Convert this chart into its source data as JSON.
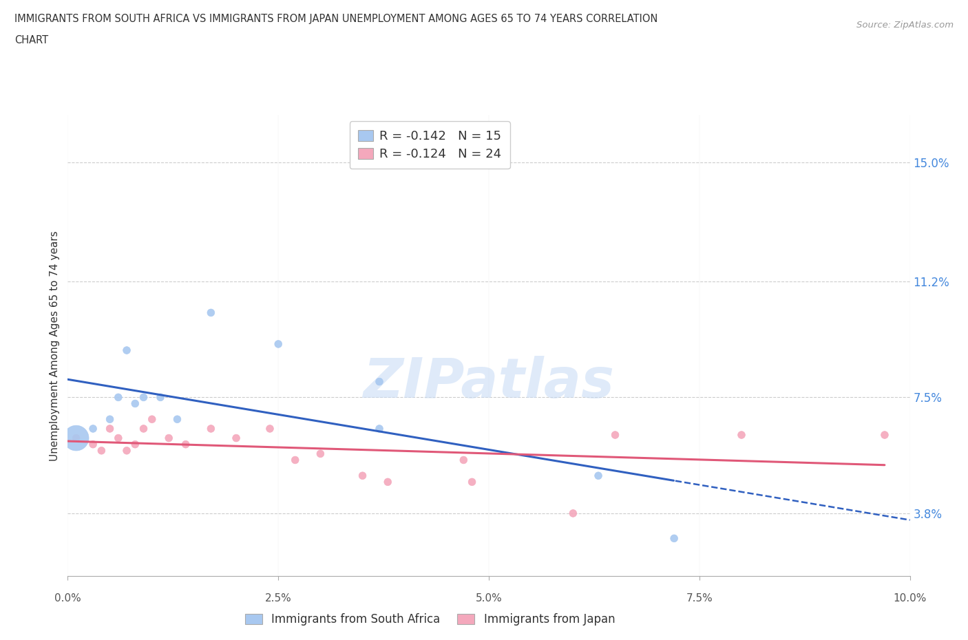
{
  "title_line1": "IMMIGRANTS FROM SOUTH AFRICA VS IMMIGRANTS FROM JAPAN UNEMPLOYMENT AMONG AGES 65 TO 74 YEARS CORRELATION",
  "title_line2": "CHART",
  "source": "Source: ZipAtlas.com",
  "ylabel": "Unemployment Among Ages 65 to 74 years",
  "xlabel_ticks": [
    "0.0%",
    "2.5%",
    "5.0%",
    "7.5%",
    "10.0%"
  ],
  "yticks_labels": [
    "3.8%",
    "7.5%",
    "11.2%",
    "15.0%"
  ],
  "yticks_values": [
    0.038,
    0.075,
    0.112,
    0.15
  ],
  "xlim": [
    0.0,
    0.1
  ],
  "ylim": [
    0.018,
    0.165
  ],
  "south_africa_color": "#a8c8f0",
  "japan_color": "#f4a8bc",
  "south_africa_line_color": "#3060c0",
  "japan_line_color": "#e05878",
  "legend_R_SA": "R = -0.142",
  "legend_N_SA": "N = 15",
  "legend_R_JP": "R = -0.124",
  "legend_N_JP": "N = 24",
  "south_africa_x": [
    0.001,
    0.003,
    0.005,
    0.006,
    0.007,
    0.008,
    0.009,
    0.011,
    0.013,
    0.017,
    0.025,
    0.037,
    0.037,
    0.063,
    0.072
  ],
  "south_africa_y": [
    0.062,
    0.065,
    0.068,
    0.075,
    0.09,
    0.073,
    0.075,
    0.075,
    0.068,
    0.102,
    0.092,
    0.08,
    0.065,
    0.05,
    0.03
  ],
  "south_africa_sizes": [
    700,
    60,
    60,
    60,
    60,
    60,
    60,
    60,
    60,
    60,
    60,
    60,
    60,
    60,
    60
  ],
  "japan_x": [
    0.001,
    0.003,
    0.004,
    0.005,
    0.006,
    0.007,
    0.008,
    0.009,
    0.01,
    0.012,
    0.014,
    0.017,
    0.02,
    0.024,
    0.027,
    0.03,
    0.035,
    0.038,
    0.047,
    0.048,
    0.06,
    0.065,
    0.08,
    0.097
  ],
  "japan_y": [
    0.062,
    0.06,
    0.058,
    0.065,
    0.062,
    0.058,
    0.06,
    0.065,
    0.068,
    0.062,
    0.06,
    0.065,
    0.062,
    0.065,
    0.055,
    0.057,
    0.05,
    0.048,
    0.055,
    0.048,
    0.038,
    0.063,
    0.063,
    0.063
  ],
  "japan_sizes": [
    60,
    60,
    60,
    60,
    60,
    60,
    60,
    60,
    60,
    60,
    60,
    60,
    60,
    60,
    60,
    60,
    60,
    60,
    60,
    60,
    60,
    60,
    60,
    60
  ],
  "watermark_text": "ZIPatlas",
  "background_color": "#ffffff"
}
